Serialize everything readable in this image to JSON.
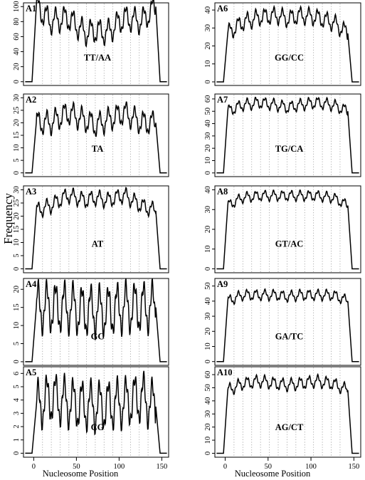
{
  "figure": {
    "ylabel": "Frequency",
    "xlabel": "Nucleosome Position"
  },
  "chart_data": [
    {
      "id": "A1",
      "type": "line",
      "annotation": "TT/AA",
      "xlim": [
        -12,
        158
      ],
      "ylim": [
        -5,
        105
      ],
      "xticks": [
        0,
        50,
        100,
        150
      ],
      "yticks": [
        0,
        20,
        40,
        60,
        80,
        100
      ],
      "show_xaxis": false,
      "base": [
        [
          "-2",
          0
        ],
        [
          "3",
          100
        ],
        [
          "20",
          80
        ],
        [
          "40",
          85
        ],
        [
          "60",
          65
        ],
        [
          "73",
          68
        ],
        [
          "86",
          65
        ],
        [
          "106",
          85
        ],
        [
          "126",
          80
        ],
        [
          "143",
          100
        ],
        [
          "148",
          0
        ]
      ],
      "period": 10.3,
      "amp": 14
    },
    {
      "id": "A2",
      "type": "line",
      "annotation": "TA",
      "xlim": [
        -12,
        158
      ],
      "ylim": [
        -1.5,
        31.5
      ],
      "xticks": [
        0,
        50,
        100,
        150
      ],
      "yticks": [
        0,
        5,
        10,
        15,
        20,
        25,
        30
      ],
      "show_xaxis": false,
      "base": [
        [
          "-2",
          0
        ],
        [
          "3",
          20
        ],
        [
          "20",
          20
        ],
        [
          "40",
          24
        ],
        [
          "60",
          21
        ],
        [
          "73",
          19
        ],
        [
          "86",
          21
        ],
        [
          "106",
          24
        ],
        [
          "126",
          20
        ],
        [
          "143",
          20
        ],
        [
          "148",
          0
        ]
      ],
      "period": 10.3,
      "amp": 4
    },
    {
      "id": "A3",
      "type": "line",
      "annotation": "AT",
      "xlim": [
        -12,
        158
      ],
      "ylim": [
        -1.5,
        31.5
      ],
      "xticks": [
        0,
        50,
        100,
        150
      ],
      "yticks": [
        0,
        5,
        10,
        15,
        20,
        25,
        30
      ],
      "show_xaxis": false,
      "base": [
        [
          "-2",
          0
        ],
        [
          "3",
          22
        ],
        [
          "20",
          24
        ],
        [
          "40",
          28
        ],
        [
          "60",
          26
        ],
        [
          "73",
          27
        ],
        [
          "86",
          26
        ],
        [
          "106",
          28
        ],
        [
          "126",
          24
        ],
        [
          "143",
          22
        ],
        [
          "148",
          0
        ]
      ],
      "period": 10.3,
      "amp": 2.5
    },
    {
      "id": "A4",
      "type": "line",
      "annotation": "GC",
      "xlim": [
        -12,
        158
      ],
      "ylim": [
        -1,
        23
      ],
      "xticks": [
        0,
        50,
        100,
        150
      ],
      "yticks": [
        0,
        5,
        10,
        15,
        20
      ],
      "show_xaxis": false,
      "base": [
        [
          "-2",
          0
        ],
        [
          "3",
          15
        ],
        [
          "20",
          15
        ],
        [
          "40",
          15
        ],
        [
          "60",
          14
        ],
        [
          "73",
          14
        ],
        [
          "86",
          14
        ],
        [
          "106",
          15
        ],
        [
          "126",
          15
        ],
        [
          "143",
          15
        ],
        [
          "148",
          0
        ]
      ],
      "period": 10.3,
      "amp": 6
    },
    {
      "id": "A5",
      "type": "line",
      "annotation": "CG",
      "xlim": [
        -12,
        158
      ],
      "ylim": [
        -0.3,
        6.5
      ],
      "xticks": [
        0,
        50,
        100,
        150
      ],
      "yticks": [
        0,
        1,
        2,
        3,
        4,
        5,
        6
      ],
      "show_xaxis": true,
      "base": [
        [
          "-2",
          0
        ],
        [
          "3",
          3.5
        ],
        [
          "20",
          4.2
        ],
        [
          "40",
          3.8
        ],
        [
          "60",
          3.6
        ],
        [
          "73",
          3.5
        ],
        [
          "86",
          3.6
        ],
        [
          "106",
          3.8
        ],
        [
          "126",
          4.2
        ],
        [
          "143",
          3.5
        ],
        [
          "148",
          0
        ]
      ],
      "period": 10.3,
      "amp": 1.6
    },
    {
      "id": "A6",
      "type": "line",
      "annotation": "GG/CC",
      "xlim": [
        -12,
        158
      ],
      "ylim": [
        -2,
        44
      ],
      "xticks": [
        0,
        50,
        100,
        150
      ],
      "yticks": [
        0,
        10,
        20,
        30,
        40
      ],
      "show_xaxis": false,
      "base": [
        [
          "-2",
          0
        ],
        [
          "3",
          27
        ],
        [
          "20",
          33
        ],
        [
          "40",
          36
        ],
        [
          "60",
          37
        ],
        [
          "73",
          35
        ],
        [
          "86",
          37
        ],
        [
          "106",
          36
        ],
        [
          "126",
          33
        ],
        [
          "143",
          27
        ],
        [
          "148",
          0
        ]
      ],
      "period": 10.3,
      "amp": 4
    },
    {
      "id": "A7",
      "type": "line",
      "annotation": "TG/CA",
      "xlim": [
        -12,
        158
      ],
      "ylim": [
        -3,
        64
      ],
      "xticks": [
        0,
        50,
        100,
        150
      ],
      "yticks": [
        0,
        10,
        20,
        30,
        40,
        50,
        60
      ],
      "show_xaxis": false,
      "base": [
        [
          "-2",
          0
        ],
        [
          "3",
          50
        ],
        [
          "20",
          55
        ],
        [
          "40",
          57
        ],
        [
          "60",
          55
        ],
        [
          "73",
          53
        ],
        [
          "86",
          55
        ],
        [
          "106",
          57
        ],
        [
          "126",
          55
        ],
        [
          "143",
          50
        ],
        [
          "148",
          0
        ]
      ],
      "period": 10.3,
      "amp": 4
    },
    {
      "id": "A8",
      "type": "line",
      "annotation": "GT/AC",
      "xlim": [
        -12,
        158
      ],
      "ylim": [
        -2,
        42
      ],
      "xticks": [
        0,
        50,
        100,
        150
      ],
      "yticks": [
        0,
        10,
        20,
        30,
        40
      ],
      "show_xaxis": false,
      "base": [
        [
          "-2",
          0
        ],
        [
          "3",
          32
        ],
        [
          "20",
          36
        ],
        [
          "40",
          37
        ],
        [
          "60",
          37
        ],
        [
          "73",
          37
        ],
        [
          "86",
          37
        ],
        [
          "106",
          37
        ],
        [
          "126",
          36
        ],
        [
          "143",
          32
        ],
        [
          "148",
          0
        ]
      ],
      "period": 10.3,
      "amp": 2.2
    },
    {
      "id": "A9",
      "type": "line",
      "annotation": "GA/TC",
      "xlim": [
        -12,
        158
      ],
      "ylim": [
        -2.5,
        55
      ],
      "xticks": [
        0,
        50,
        100,
        150
      ],
      "yticks": [
        0,
        10,
        20,
        30,
        40,
        50
      ],
      "show_xaxis": false,
      "base": [
        [
          "-2",
          0
        ],
        [
          "3",
          40
        ],
        [
          "20",
          44
        ],
        [
          "40",
          44
        ],
        [
          "60",
          44
        ],
        [
          "73",
          43
        ],
        [
          "86",
          44
        ],
        [
          "106",
          44
        ],
        [
          "126",
          44
        ],
        [
          "143",
          40
        ],
        [
          "148",
          0
        ]
      ],
      "period": 10.3,
      "amp": 3
    },
    {
      "id": "A10",
      "type": "line",
      "annotation": "AG/CT",
      "xlim": [
        -12,
        158
      ],
      "ylim": [
        -3,
        66
      ],
      "xticks": [
        0,
        50,
        100,
        150
      ],
      "yticks": [
        0,
        10,
        20,
        30,
        40,
        50,
        60
      ],
      "show_xaxis": true,
      "base": [
        [
          "-2",
          0
        ],
        [
          "3",
          48
        ],
        [
          "20",
          53
        ],
        [
          "40",
          55
        ],
        [
          "60",
          53
        ],
        [
          "73",
          52
        ],
        [
          "86",
          53
        ],
        [
          "106",
          55
        ],
        [
          "126",
          53
        ],
        [
          "143",
          48
        ],
        [
          "148",
          0
        ]
      ],
      "period": 10.3,
      "amp": 4
    }
  ]
}
